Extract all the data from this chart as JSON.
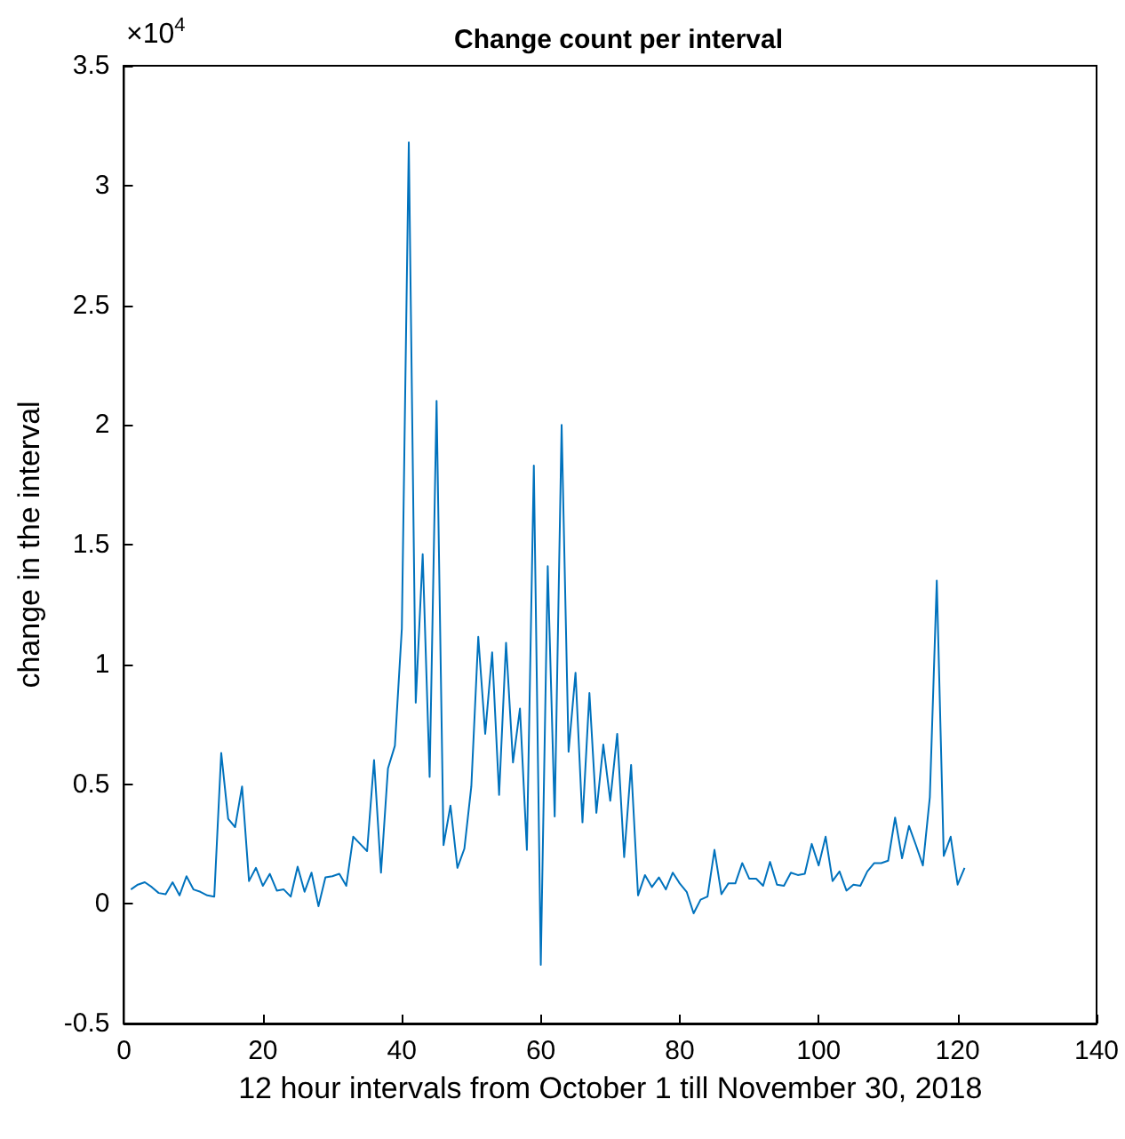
{
  "chart_data": {
    "type": "line",
    "title": "Change count per interval",
    "xlabel": "12 hour intervals from October 1 till November 30, 2018",
    "ylabel": "change in the interval",
    "annotations": [
      "×10$^{4}$"
    ],
    "x": [
      1,
      2,
      3,
      4,
      5,
      6,
      7,
      8,
      9,
      10,
      11,
      12,
      13,
      14,
      15,
      16,
      17,
      18,
      19,
      20,
      21,
      22,
      23,
      24,
      25,
      26,
      27,
      28,
      29,
      30,
      31,
      32,
      33,
      34,
      35,
      36,
      37,
      38,
      39,
      40,
      41,
      42,
      43,
      44,
      45,
      46,
      47,
      48,
      49,
      50,
      51,
      52,
      53,
      54,
      55,
      56,
      57,
      58,
      59,
      60,
      61,
      62,
      63,
      64,
      65,
      66,
      67,
      68,
      69,
      70,
      71,
      72,
      73,
      74,
      75,
      76,
      77,
      78,
      79,
      80,
      81,
      82,
      83,
      84,
      85,
      86,
      87,
      88,
      89,
      90,
      91,
      92,
      93,
      94,
      95,
      96,
      97,
      98,
      99,
      100,
      101,
      102,
      103,
      104,
      105,
      106,
      107,
      108,
      109,
      110,
      111,
      112,
      113,
      114,
      115,
      116,
      117,
      118,
      119,
      120,
      121
    ],
    "series": [
      {
        "color": "#0072bd",
        "values": [
          0.06,
          0.08,
          0.09,
          0.07,
          0.045,
          0.04,
          0.09,
          0.035,
          0.115,
          0.06,
          0.05,
          0.035,
          0.03,
          0.63,
          0.355,
          0.32,
          0.49,
          0.095,
          0.15,
          0.075,
          0.125,
          0.055,
          0.06,
          0.03,
          0.155,
          0.05,
          0.13,
          -0.01,
          0.11,
          0.115,
          0.125,
          0.075,
          0.28,
          0.25,
          0.22,
          0.6,
          0.13,
          0.565,
          0.66,
          1.15,
          3.18,
          0.84,
          1.46,
          0.53,
          2.1,
          0.245,
          0.41,
          0.15,
          0.23,
          0.49,
          1.115,
          0.71,
          1.05,
          0.455,
          1.09,
          0.59,
          0.815,
          0.225,
          1.83,
          -0.255,
          1.41,
          0.365,
          2.0,
          0.635,
          0.965,
          0.34,
          0.88,
          0.38,
          0.665,
          0.43,
          0.71,
          0.195,
          0.58,
          0.035,
          0.12,
          0.07,
          0.11,
          0.06,
          0.13,
          0.085,
          0.05,
          -0.04,
          0.017,
          0.03,
          0.225,
          0.04,
          0.085,
          0.085,
          0.17,
          0.105,
          0.105,
          0.075,
          0.175,
          0.08,
          0.075,
          0.13,
          0.12,
          0.125,
          0.25,
          0.16,
          0.28,
          0.095,
          0.135,
          0.055,
          0.08,
          0.075,
          0.135,
          0.17,
          0.17,
          0.18,
          0.36,
          0.19,
          0.325,
          0.245,
          0.16,
          0.445,
          1.35,
          0.2,
          0.28,
          0.08,
          0.15
        ]
      }
    ],
    "xlim": [
      0,
      140
    ],
    "xticks": [
      0,
      20,
      40,
      60,
      80,
      100,
      120,
      140
    ],
    "ylim": [
      -0.5,
      3.5
    ],
    "yticks": [
      -0.5,
      0,
      0.5,
      1,
      1.5,
      2,
      2.5,
      3,
      3.5
    ],
    "marker": "none",
    "line_style": "solid"
  }
}
